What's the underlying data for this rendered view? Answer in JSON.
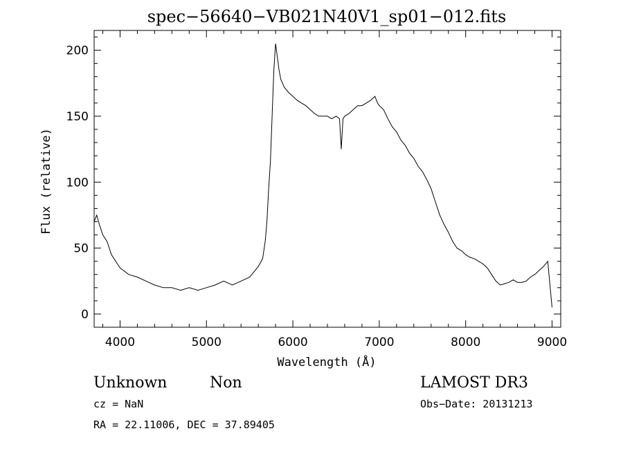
{
  "header": {
    "title": "spec−56640−VB021N40V1_sp01−012.fits"
  },
  "axes": {
    "xlabel": "Wavelength (Å)",
    "ylabel": "Flux (relative)"
  },
  "info": {
    "class_text": "Unknown",
    "subclass_text": "Non",
    "redshift_text": "cz = NaN",
    "coords_text": "RA =  22.11006, DEC =  37.89405",
    "survey_text": "LAMOST DR3",
    "obsdate_text": "Obs−Date: 20131213"
  },
  "chart_data": {
    "type": "line",
    "title": "spec−56640−VB021N40V1_sp01−012.fits",
    "xlabel": "Wavelength (Å)",
    "ylabel": "Flux (relative)",
    "xlim": [
      3700,
      9100
    ],
    "ylim": [
      -10,
      215
    ],
    "xticks": [
      4000,
      5000,
      6000,
      7000,
      8000,
      9000
    ],
    "yticks": [
      0,
      50,
      100,
      150,
      200
    ],
    "x_minor_step": 200,
    "y_minor_step": 10,
    "grid": false,
    "legend": "none",
    "series": [
      {
        "color": "#000000",
        "x": [
          3700,
          3730,
          3760,
          3800,
          3850,
          3900,
          3950,
          4000,
          4100,
          4200,
          4300,
          4400,
          4500,
          4600,
          4700,
          4800,
          4900,
          5000,
          5100,
          5200,
          5300,
          5400,
          5500,
          5550,
          5600,
          5650,
          5680,
          5700,
          5720,
          5740,
          5760,
          5780,
          5800,
          5820,
          5840,
          5860,
          5880,
          5900,
          5950,
          6000,
          6050,
          6100,
          6150,
          6200,
          6250,
          6300,
          6350,
          6400,
          6450,
          6500,
          6540,
          6560,
          6580,
          6600,
          6650,
          6700,
          6750,
          6800,
          6850,
          6900,
          6950,
          6980,
          7000,
          7050,
          7100,
          7150,
          7200,
          7250,
          7300,
          7350,
          7400,
          7450,
          7500,
          7550,
          7600,
          7650,
          7700,
          7750,
          7800,
          7850,
          7900,
          7950,
          8000,
          8050,
          8100,
          8150,
          8200,
          8250,
          8300,
          8350,
          8400,
          8450,
          8500,
          8550,
          8600,
          8650,
          8700,
          8750,
          8800,
          8850,
          8900,
          8950,
          9000
        ],
        "y": [
          70,
          75,
          68,
          60,
          55,
          45,
          40,
          35,
          30,
          28,
          25,
          22,
          20,
          20,
          18,
          20,
          18,
          20,
          22,
          25,
          22,
          25,
          28,
          32,
          36,
          42,
          55,
          70,
          95,
          115,
          150,
          185,
          205,
          195,
          185,
          178,
          175,
          172,
          168,
          165,
          162,
          160,
          158,
          155,
          152,
          150,
          150,
          150,
          148,
          150,
          148,
          125,
          148,
          150,
          152,
          155,
          158,
          158,
          160,
          162,
          165,
          160,
          158,
          155,
          148,
          142,
          138,
          132,
          128,
          122,
          118,
          112,
          108,
          102,
          95,
          85,
          75,
          68,
          62,
          55,
          50,
          48,
          45,
          43,
          42,
          40,
          38,
          35,
          30,
          25,
          22,
          23,
          24,
          26,
          24,
          24,
          25,
          28,
          30,
          33,
          36,
          40,
          5
        ]
      }
    ]
  }
}
